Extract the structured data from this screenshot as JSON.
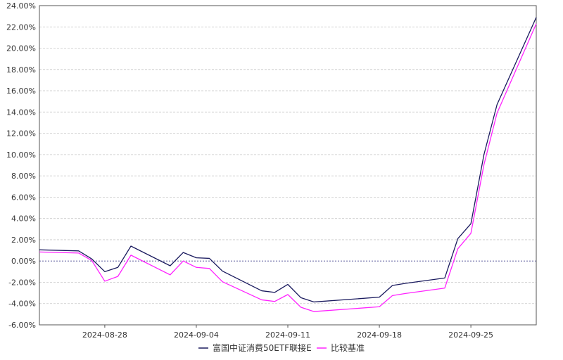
{
  "chart_data": {
    "type": "line",
    "title": "",
    "xlabel": "",
    "ylabel": "",
    "ylim": [
      -6,
      24
    ],
    "y_ticks": [
      -6,
      -4,
      -2,
      0,
      2,
      4,
      6,
      8,
      10,
      12,
      14,
      16,
      18,
      20,
      22,
      24
    ],
    "y_tick_labels": [
      "-6.00%",
      "-4.00%",
      "-2.00%",
      "0.00%",
      "2.00%",
      "4.00%",
      "6.00%",
      "8.00%",
      "10.00%",
      "12.00%",
      "14.00%",
      "16.00%",
      "18.00%",
      "20.00%",
      "22.00%",
      "24.00%"
    ],
    "x_tick_labels": [
      "2024-08-28",
      "2024-09-04",
      "2024-09-11",
      "2024-09-18",
      "2024-09-25"
    ],
    "x_tick_dates": [
      "2024-08-28",
      "2024-09-04",
      "2024-09-11",
      "2024-09-18",
      "2024-09-25"
    ],
    "x": [
      "2024-08-23",
      "2024-08-26",
      "2024-08-27",
      "2024-08-28",
      "2024-08-29",
      "2024-08-30",
      "2024-09-02",
      "2024-09-03",
      "2024-09-04",
      "2024-09-05",
      "2024-09-06",
      "2024-09-09",
      "2024-09-10",
      "2024-09-11",
      "2024-09-12",
      "2024-09-13",
      "2024-09-18",
      "2024-09-19",
      "2024-09-20",
      "2024-09-23",
      "2024-09-24",
      "2024-09-25",
      "2024-09-26",
      "2024-09-27",
      "2024-09-30"
    ],
    "series": [
      {
        "name": "富国中证消费50ETF联接E",
        "color": "#1a1a5e",
        "values": [
          1.05,
          0.95,
          0.2,
          -1.0,
          -0.6,
          1.4,
          -0.45,
          0.8,
          0.3,
          0.25,
          -0.95,
          -2.8,
          -2.95,
          -2.2,
          -3.45,
          -3.85,
          -3.4,
          -2.3,
          -2.1,
          -1.6,
          2.1,
          3.5,
          10.0,
          14.7,
          22.9
        ]
      },
      {
        "name": "比较基准",
        "color": "#ff22ff",
        "values": [
          0.85,
          0.75,
          0.05,
          -1.9,
          -1.45,
          0.55,
          -1.3,
          0.0,
          -0.6,
          -0.7,
          -1.95,
          -3.65,
          -3.8,
          -3.15,
          -4.35,
          -4.75,
          -4.3,
          -3.25,
          -3.05,
          -2.55,
          1.15,
          2.6,
          9.05,
          13.9,
          22.3
        ]
      }
    ],
    "grid": true,
    "legend_position": "bottom-center"
  }
}
